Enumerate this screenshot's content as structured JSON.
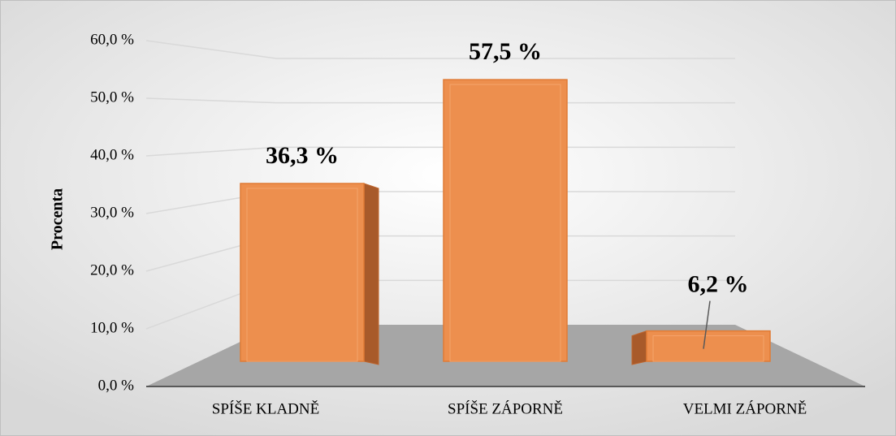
{
  "chart_data": {
    "type": "bar3d",
    "ylabel": "Procenta",
    "categories": [
      "SPÍŠE KLADNĚ",
      "SPÍŠE ZÁPORNĚ",
      "VELMI ZÁPORNĚ"
    ],
    "values": [
      36.3,
      57.5,
      6.2
    ],
    "value_labels": [
      "36,3 %",
      "57,5 %",
      "6,2 %"
    ],
    "color": "#ed8f4e",
    "ylim": [
      0,
      60
    ],
    "yticks": [
      {
        "value": 0,
        "label": "0,0 %"
      },
      {
        "value": 10,
        "label": "10,0 %"
      },
      {
        "value": 20,
        "label": "20,0 %"
      },
      {
        "value": 30,
        "label": "30,0 %"
      },
      {
        "value": 40,
        "label": "40,0 %"
      },
      {
        "value": 50,
        "label": "50,0 %"
      },
      {
        "value": 60,
        "label": "60,0 %"
      }
    ],
    "grid": true
  }
}
